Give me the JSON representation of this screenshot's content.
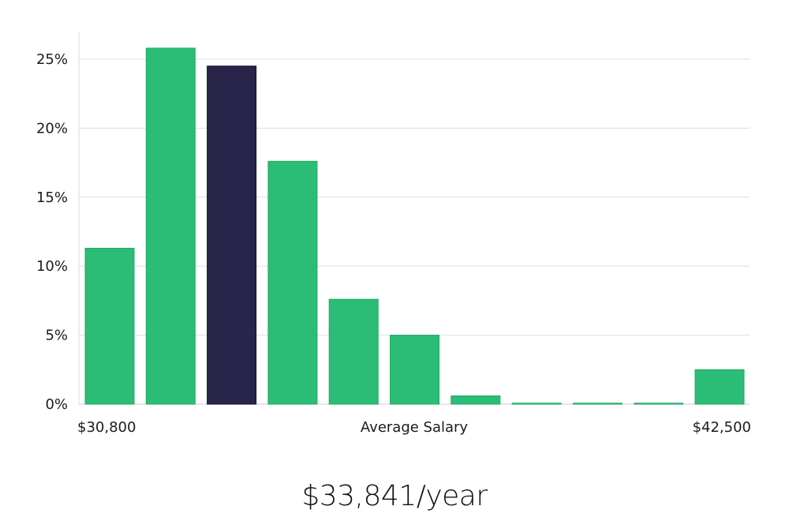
{
  "summary": {
    "salary_text": "$33,841/year"
  },
  "colors": {
    "bar": "#2bbd76",
    "highlight": "#29244a",
    "grid": "#dddddd",
    "axis": "#cccccc"
  },
  "chart_data": {
    "type": "bar",
    "title": "",
    "xlabel": "Average Salary",
    "ylabel": "",
    "x_start_label": "$30,800",
    "x_end_label": "$42,500",
    "bins": 11,
    "values": [
      11.3,
      25.8,
      24.5,
      17.6,
      7.6,
      5.0,
      0.6,
      0.07,
      0.07,
      0.07,
      2.5
    ],
    "highlight_index": 2,
    "ylim": [
      0,
      27
    ],
    "yticks": [
      0,
      5,
      10,
      15,
      20,
      25
    ],
    "ytick_labels": [
      "0%",
      "5%",
      "10%",
      "15%",
      "20%",
      "25%"
    ],
    "grid": true
  }
}
